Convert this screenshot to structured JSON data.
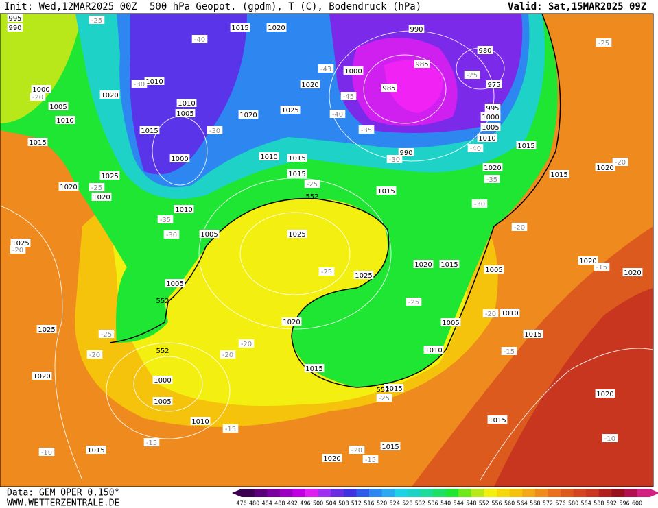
{
  "header": {
    "init": "Init: Wed,12MAR2025 00Z",
    "title": "500 hPa Geopot. (gpdm), T (C), Bodendruck (hPa)",
    "valid": "Valid: Sat,15MAR2025 09Z"
  },
  "footer": {
    "source": "Data: GEM OPER 0.150°",
    "website": "WWW.WETTERZENTRALE.DE"
  },
  "pressure_labels": [
    "995",
    "990",
    "1015",
    "1020",
    "990",
    "980",
    "985",
    "1010",
    "1000",
    "975",
    "985",
    "1000",
    "1020",
    "1020",
    "1010",
    "1005",
    "995",
    "1000",
    "1005",
    "1010",
    "1025",
    "1020",
    "1015",
    "1005",
    "1010",
    "1015",
    "1015",
    "990",
    "1010",
    "1015",
    "1000",
    "1020",
    "1020",
    "1015",
    "1025",
    "1015",
    "1020",
    "1020",
    "1015",
    "1010",
    "1025",
    "1005",
    "1025",
    "1020",
    "1015",
    "1005",
    "1020",
    "1020",
    "1025",
    "1005",
    "1010",
    "1005",
    "1020",
    "1025",
    "1015",
    "1010",
    "1015",
    "1020",
    "1000",
    "1015",
    "1005",
    "1020",
    "1010",
    "1015",
    "1015",
    "1015",
    "1020"
  ],
  "temperature_labels": [
    "-25",
    "-40",
    "-30",
    "-43",
    "-45",
    "-25",
    "-40",
    "-35",
    "-30",
    "-30",
    "-40",
    "-35",
    "-25",
    "-25",
    "-30",
    "-35",
    "-30",
    "-20",
    "-20",
    "-25",
    "-20",
    "-20",
    "-15",
    "-25",
    "-25",
    "-20",
    "-25",
    "-20",
    "-20",
    "-20",
    "-15",
    "-25",
    "-20",
    "-15",
    "-15",
    "-15",
    "-10",
    "-10"
  ],
  "height_labels": [
    "552",
    "552",
    "552",
    "552"
  ],
  "colorbar": {
    "values": [
      476,
      480,
      484,
      488,
      492,
      496,
      500,
      504,
      508,
      512,
      516,
      520,
      524,
      528,
      532,
      536,
      540,
      544,
      548,
      552,
      556,
      560,
      564,
      568,
      572,
      576,
      580,
      584,
      588,
      592,
      596,
      600
    ],
    "colors": [
      "#3c0050",
      "#5a0078",
      "#7a00a0",
      "#9a00c0",
      "#c000e0",
      "#e020f0",
      "#a030f0",
      "#6a2ee0",
      "#4030e0",
      "#2e5ae8",
      "#2e86f0",
      "#2aaaf0",
      "#1ed2e8",
      "#1ed2c8",
      "#1edc9a",
      "#1ee064",
      "#1ee632",
      "#6ee81a",
      "#b8e81a",
      "#f3ef10",
      "#f5d80c",
      "#f5c20c",
      "#f2a818",
      "#ef8c1e",
      "#e8701e",
      "#dd5a1e",
      "#d4461f",
      "#c8361f",
      "#b0201e",
      "#98101e",
      "#b01050",
      "#d02080"
    ]
  }
}
